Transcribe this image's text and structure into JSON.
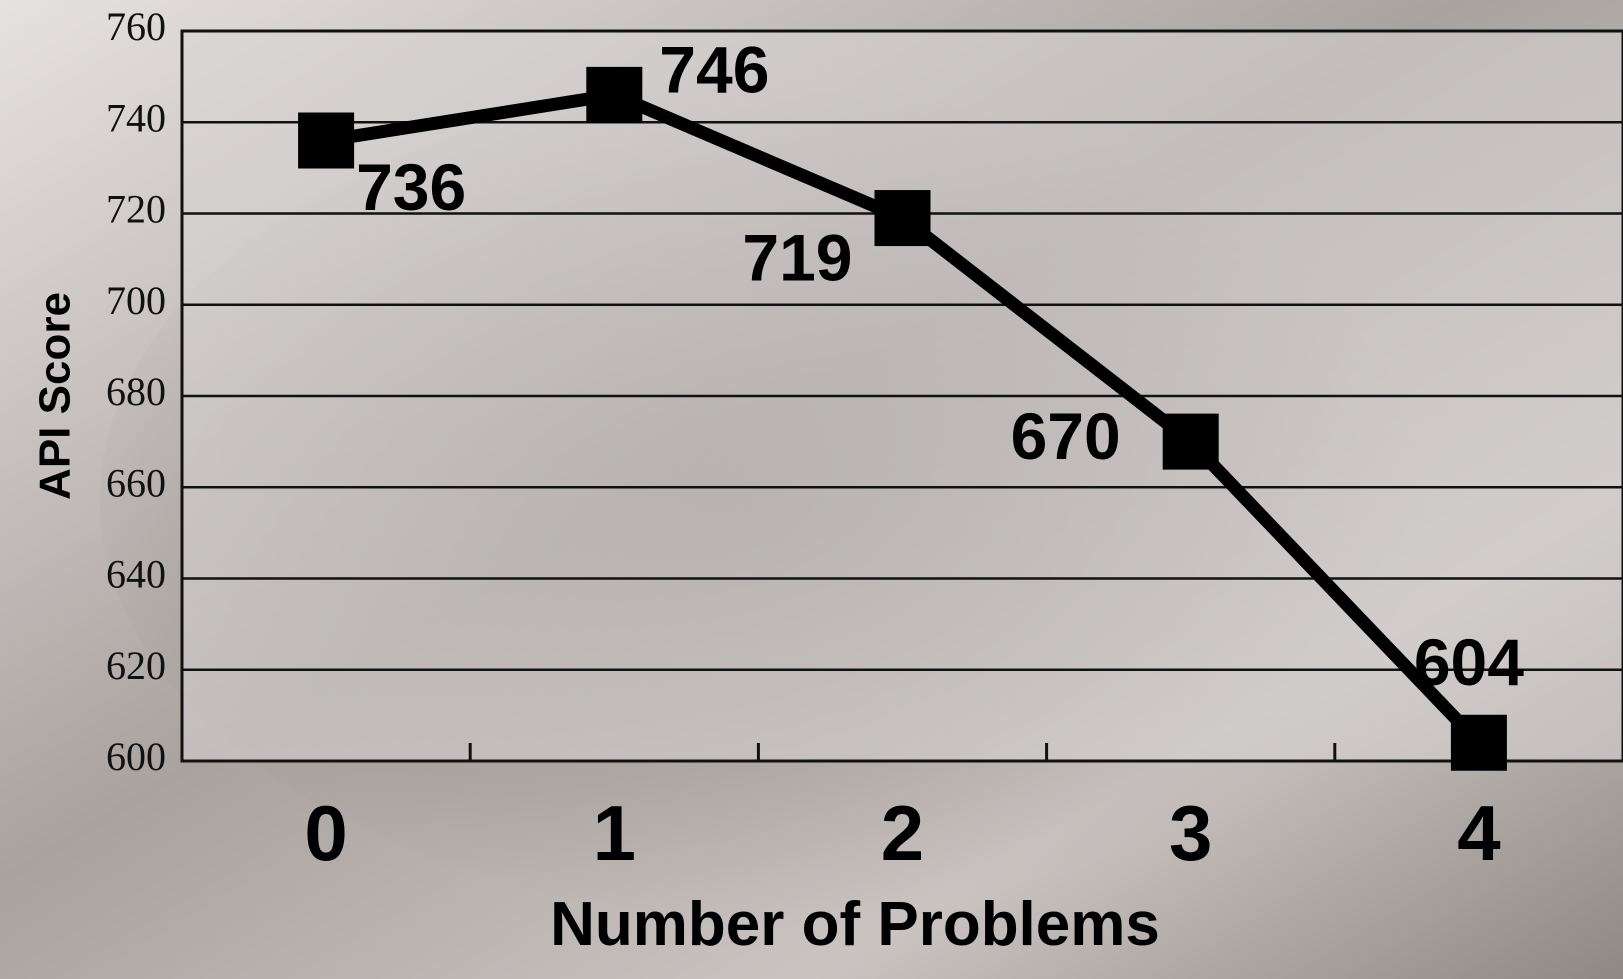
{
  "chart_data": {
    "type": "line",
    "categories": [
      "0",
      "1",
      "2",
      "3",
      "4"
    ],
    "values": [
      736,
      746,
      719,
      670,
      604
    ],
    "color": "#000000",
    "x_label": "Number of Problems",
    "y_label": "API Score",
    "ylim": [
      600,
      760
    ],
    "yticks": [
      600,
      620,
      640,
      660,
      680,
      700,
      720,
      740,
      760
    ],
    "grid": true
  }
}
